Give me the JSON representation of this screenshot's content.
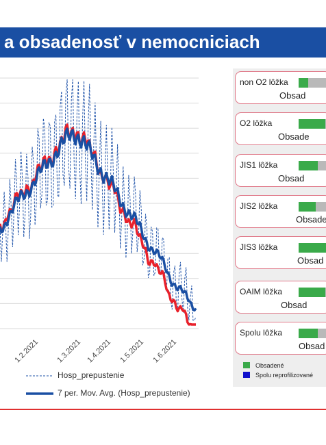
{
  "header": {
    "title": "a obsadenosť v nemocniciach"
  },
  "chart_data": {
    "type": "line",
    "title": "",
    "xlabel": "",
    "ylabel": "",
    "x_ticks": [
      "1.2.2021",
      "1.3.2021",
      "1.4.2021",
      "1.5.2021",
      "1.6.2021"
    ],
    "grid": true,
    "legend": "bottom",
    "series": [
      {
        "name": "Hosp_prepustenie",
        "style": "dashed",
        "color": "#2255aa"
      },
      {
        "name": "7 per. Mov. Avg. (Hosp_prepustenie)",
        "style": "solid",
        "color": "#1a4fa3"
      },
      {
        "name": "",
        "style": "solid",
        "color": "#e8212b"
      }
    ]
  },
  "beds_panel": {
    "cards": [
      {
        "label": "non O2 lôžka",
        "caption": "Obsad",
        "fill": 0.3
      },
      {
        "label": "O2 lôžka",
        "caption": "Obsade",
        "fill": 0.85
      },
      {
        "label": "JIS1 lôžka",
        "caption": "Obsad",
        "fill": 0.6
      },
      {
        "label": "JIS2 lôžka",
        "caption": "Obsade",
        "fill": 0.55
      },
      {
        "label": "JIS3 lôžka",
        "caption": "Obsad",
        "fill": 0.9
      },
      {
        "label": "OAIM lôžka",
        "caption": "Obsad",
        "fill": 0.85
      },
      {
        "label": "Spolu lôžka",
        "caption": "Obsad",
        "fill": 0.6
      }
    ],
    "key": [
      {
        "label": "Obsadené",
        "color": "#3aaa4a"
      },
      {
        "label": "Spolu reprofilizované",
        "color": "#1010cc"
      }
    ]
  }
}
